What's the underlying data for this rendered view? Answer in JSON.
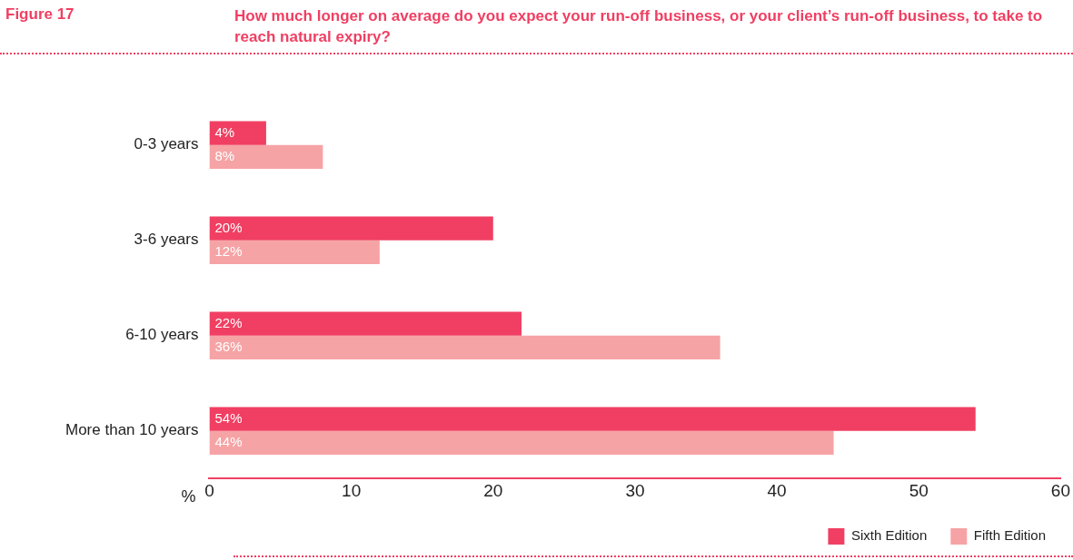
{
  "chart_data": {
    "type": "bar",
    "orientation": "horizontal",
    "title": "How much longer on average do you expect your run-off business, or your client’s run-off business, to take to reach natural expiry?",
    "annotations": [
      "Figure 17"
    ],
    "xlabel": "%",
    "categories": [
      "0-3 years",
      "3-6 years",
      "6-10 years",
      "More than 10 years"
    ],
    "series": [
      {
        "name": "Sixth Edition",
        "color": "#f03f62",
        "values": [
          4,
          20,
          22,
          54
        ],
        "value_labels": [
          "4%",
          "20%",
          "22%",
          "54%"
        ]
      },
      {
        "name": "Fifth Edition",
        "color": "#f6a3a5",
        "values": [
          8,
          12,
          36,
          44
        ],
        "value_labels": [
          "8%",
          "12%",
          "36%",
          "44%"
        ]
      }
    ],
    "xlim": [
      0,
      60
    ],
    "xticks": [
      0,
      10,
      20,
      30,
      40,
      50,
      60
    ],
    "grid": false,
    "legend": "bottom right"
  }
}
